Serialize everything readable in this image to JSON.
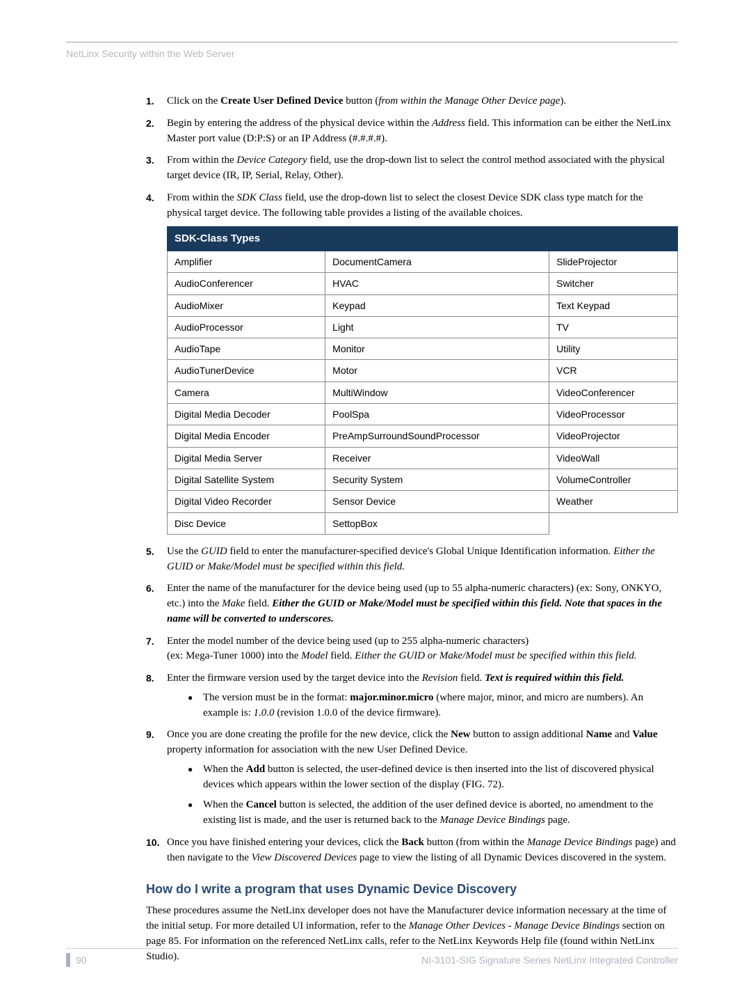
{
  "breadcrumb": "NetLinx Security within the Web Server",
  "list": {
    "i1": {
      "pre": "Click on the ",
      "bold": "Create User Defined Device",
      "mid": " button (",
      "ital": "from within the Manage Other Device page",
      "post": ")."
    },
    "i2": {
      "pre": "Begin by entering the address of the physical device within the ",
      "ital": "Address",
      "post": " field. This information can be either the NetLinx Master port value (D:P:S) or an IP Address (#.#.#.#)."
    },
    "i3": {
      "pre": "From within the ",
      "ital": "Device Category",
      "post": " field, use the drop-down list to select the control method associated with the physical target device (IR, IP, Serial, Relay, Other)."
    },
    "i4": {
      "pre": "From within the ",
      "ital": "SDK Class",
      "post": " field, use the drop-down list to select the closest Device SDK class type match for the physical target device. The following table provides a listing of the available choices."
    },
    "i5": {
      "pre": "Use the ",
      "ital1": "GUID",
      "mid": " field to enter the manufacturer-specified device's Global Unique Identification information. ",
      "ital2": "Either the GUID or Make/Model must be specified within this field."
    },
    "i6": {
      "pre": "Enter the name of the manufacturer for the device being used (up to 55 alpha-numeric characters) (ex: Sony, ONKYO, etc.) into the ",
      "ital1": "Make",
      "mid": " field. ",
      "ital2": "Either the GUID or Make/Model must be specified within this field. Note that spaces in the name will be converted to underscores."
    },
    "i7": {
      "line1": "Enter the model number of the device being used (up to 255 alpha-numeric characters)",
      "line2pre": "(ex: Mega-Tuner 1000) into the ",
      "ital1": "Model",
      "mid": " field. ",
      "ital2": "Either the GUID or Make/Model must be specified within this field."
    },
    "i8": {
      "pre": "Enter the firmware version used by the target device into the ",
      "ital1": "Revision",
      "mid": " field. ",
      "ital2": "Text is required within this field.",
      "bullet_pre": "The version must be in the format: ",
      "bullet_bold": "major.minor.micro",
      "bullet_mid": " (where major, minor, and micro are numbers). An example is: ",
      "bullet_ital": "1.0.0",
      "bullet_post": " (revision 1.0.0 of the device firmware)."
    },
    "i9": {
      "pre": "Once you are done creating the profile for the new device, click the ",
      "bold1": "New",
      "mid1": " button to assign additional ",
      "bold2": "Name",
      "mid2": " and ",
      "bold3": "Value",
      "post": " property information for association with the new User Defined Device.",
      "b1_pre": "When the ",
      "b1_bold": "Add",
      "b1_post": " button is selected, the user-defined device is then inserted into the list of discovered physical devices which appears within the lower section of the display (FIG. 72).",
      "b2_pre": "When the ",
      "b2_bold": "Cancel",
      "b2_mid": " button is selected, the addition of the user defined device is aborted, no amendment to the existing list is made, and the user is returned back to the ",
      "b2_ital": "Manage Device Bindings",
      "b2_post": " page."
    },
    "i10": {
      "pre": "Once you have finished entering your devices, click the ",
      "bold": "Back",
      "mid1": " button (from within the ",
      "ital1": "Manage Device Bindings",
      "mid2": " page) and then navigate to the ",
      "ital2": "View Discovered Devices",
      "post": " page to view the listing of all Dynamic Devices discovered in the system."
    }
  },
  "table": {
    "header": "SDK-Class Types",
    "rows": [
      [
        "Amplifier",
        "DocumentCamera",
        "SlideProjector"
      ],
      [
        "AudioConferencer",
        "HVAC",
        "Switcher"
      ],
      [
        "AudioMixer",
        "Keypad",
        "Text Keypad"
      ],
      [
        "AudioProcessor",
        "Light",
        "TV"
      ],
      [
        "AudioTape",
        "Monitor",
        "Utility"
      ],
      [
        "AudioTunerDevice",
        "Motor",
        "VCR"
      ],
      [
        "Camera",
        "MultiWindow",
        "VideoConferencer"
      ],
      [
        "Digital Media Decoder",
        "PoolSpa",
        "VideoProcessor"
      ],
      [
        "Digital Media Encoder",
        "PreAmpSurroundSoundProcessor",
        "VideoProjector"
      ],
      [
        "Digital Media Server",
        "Receiver",
        "VideoWall"
      ],
      [
        "Digital Satellite System",
        "Security System",
        "VolumeController"
      ],
      [
        "Digital Video Recorder",
        "Sensor Device",
        "Weather"
      ],
      [
        "Disc Device",
        "SettopBox",
        ""
      ]
    ]
  },
  "section_heading": "How do I write a program that uses Dynamic Device Discovery",
  "section_body": {
    "pre": "These procedures assume the NetLinx developer does not have the Manufacturer device information necessary at the time of the initial setup. For more detailed UI information, refer to the ",
    "ital1": "Manage Other Devices - Manage Device Bindings",
    "mid": " section on page 85. For information on the referenced NetLinx calls, refer to the NetLinx Keywords Help file (found within NetLinx Studio)."
  },
  "footer": {
    "page": "90",
    "text": "NI-3101-SIG Signature Series NetLinx Integrated Controller"
  },
  "colors": {
    "table_header_bg": "#1a3a5c",
    "table_header_fg": "#ffffff",
    "heading_fg": "#2a4a75",
    "muted": "#aeb6c0"
  }
}
